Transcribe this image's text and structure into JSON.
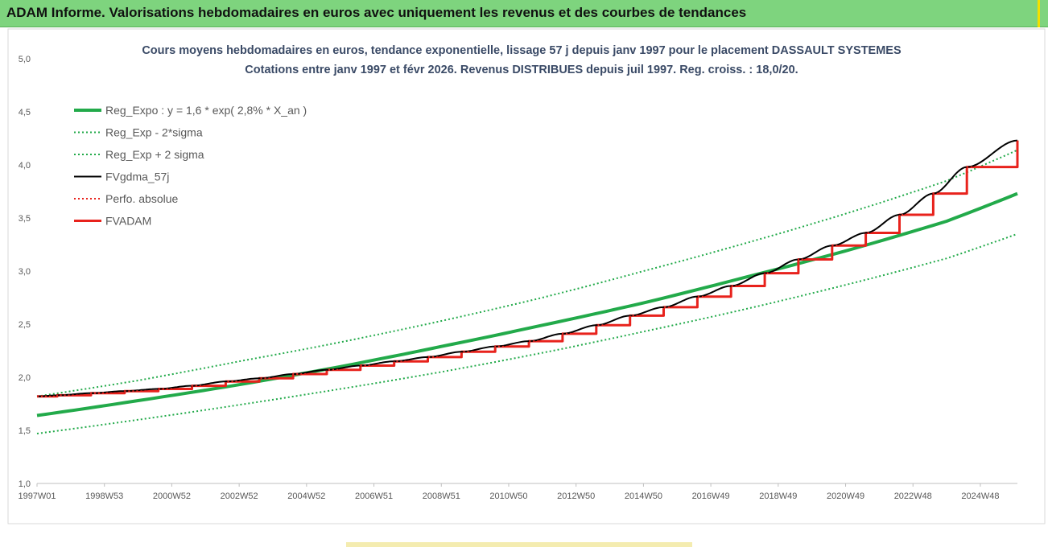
{
  "header": {
    "title": "ADAM Informe. Valorisations hebdomadaires en euros avec uniquement les revenus et des courbes de tendances"
  },
  "chart_data": {
    "type": "line",
    "title": "Cours moyens hebdomadaires en euros, tendance exponentielle, lissage 57 j depuis janv 1997 pour le placement DASSAULT SYSTEMES",
    "subtitle": "Cotations entre janv 1997 et févr 2026. Revenus DISTRIBUES depuis juil 1997. Reg. croiss. : 18,0/20.",
    "xlabel": "",
    "ylabel": "",
    "ylim": [
      1.0,
      5.0
    ],
    "xlim": [
      1997.0,
      2026.1
    ],
    "yticks": [
      "1,0",
      "1,5",
      "2,0",
      "2,5",
      "3,0",
      "3,5",
      "4,0",
      "4,5",
      "5,0"
    ],
    "xtick_labels": [
      "1997W01",
      "1998W53",
      "2000W52",
      "2002W52",
      "2004W52",
      "2006W51",
      "2008W51",
      "2010W50",
      "2012W50",
      "2014W50",
      "2016W49",
      "2018W49",
      "2020W49",
      "2022W48",
      "2024W48"
    ],
    "xtick_years": [
      1997.0,
      1999.0,
      2001.0,
      2003.0,
      2005.0,
      2007.0,
      2009.0,
      2011.0,
      2013.0,
      2015.0,
      2017.0,
      2019.0,
      2021.0,
      2023.0,
      2025.0
    ],
    "grid": false,
    "legend_position": "top-left",
    "series": [
      {
        "name": "Reg_Expo : y = 1,6 * exp( 2,8% *  X_an )",
        "color": "#22aa4a",
        "style": "solid",
        "x": [
          1997.0,
          2000.0,
          2003.0,
          2006.0,
          2009.0,
          2012.0,
          2015.0,
          2018.0,
          2021.0,
          2024.0,
          2026.1
        ],
        "y": [
          1.64,
          1.78,
          1.93,
          2.1,
          2.29,
          2.49,
          2.7,
          2.94,
          3.19,
          3.47,
          3.73
        ]
      },
      {
        "name": "Reg_Exp - 2*sigma",
        "color": "#22aa4a",
        "style": "dotted",
        "x": [
          1997.0,
          2000.0,
          2003.0,
          2006.0,
          2009.0,
          2012.0,
          2015.0,
          2018.0,
          2021.0,
          2024.0,
          2026.1
        ],
        "y": [
          1.47,
          1.6,
          1.74,
          1.89,
          2.05,
          2.23,
          2.43,
          2.64,
          2.87,
          3.12,
          3.35
        ]
      },
      {
        "name": "Reg_Exp + 2 sigma",
        "color": "#22aa4a",
        "style": "dotted",
        "x": [
          1997.0,
          2000.0,
          2003.0,
          2006.0,
          2009.0,
          2012.0,
          2015.0,
          2018.0,
          2021.0,
          2024.0,
          2026.1
        ],
        "y": [
          1.82,
          1.97,
          2.15,
          2.33,
          2.53,
          2.75,
          3.0,
          3.26,
          3.54,
          3.85,
          4.14
        ]
      },
      {
        "name": "FVgdma_57j",
        "color": "#000000",
        "style": "solid-smoothed",
        "x": [
          1997.0,
          1997.6,
          1998.6,
          1999.6,
          2000.6,
          2001.6,
          2002.6,
          2003.6,
          2004.6,
          2005.6,
          2006.6,
          2007.6,
          2008.6,
          2009.6,
          2010.6,
          2011.6,
          2012.6,
          2013.6,
          2014.6,
          2015.6,
          2016.6,
          2017.6,
          2018.6,
          2019.6,
          2020.6,
          2021.6,
          2022.6,
          2023.6,
          2024.6,
          2026.1
        ],
        "y": [
          1.82,
          1.83,
          1.85,
          1.87,
          1.89,
          1.92,
          1.96,
          1.99,
          2.03,
          2.07,
          2.11,
          2.15,
          2.19,
          2.24,
          2.29,
          2.34,
          2.41,
          2.49,
          2.58,
          2.66,
          2.76,
          2.86,
          2.98,
          3.11,
          3.24,
          3.36,
          3.53,
          3.73,
          3.98,
          4.23
        ]
      },
      {
        "name": "Perfo. absolue",
        "color": "#e8221c",
        "style": "dotted",
        "x": [
          1997.0,
          1997.6,
          1998.6,
          1999.6,
          2000.6,
          2001.6,
          2002.6,
          2003.6,
          2004.6,
          2005.6,
          2006.6,
          2007.6,
          2008.6,
          2009.6,
          2010.6,
          2011.6,
          2012.6,
          2013.6,
          2014.6,
          2015.6,
          2016.6,
          2017.6,
          2018.6,
          2019.6,
          2020.6,
          2021.6,
          2022.6,
          2023.6,
          2024.6,
          2026.1
        ],
        "y": [
          1.82,
          1.83,
          1.85,
          1.87,
          1.89,
          1.92,
          1.96,
          1.99,
          2.03,
          2.07,
          2.11,
          2.15,
          2.19,
          2.24,
          2.29,
          2.34,
          2.41,
          2.49,
          2.58,
          2.66,
          2.76,
          2.86,
          2.98,
          3.11,
          3.24,
          3.36,
          3.53,
          3.73,
          3.98,
          4.23
        ]
      },
      {
        "name": "FVADAM",
        "color": "#e8221c",
        "style": "solid-step",
        "x": [
          1997.0,
          1997.6,
          1998.6,
          1999.6,
          2000.6,
          2001.6,
          2002.6,
          2003.6,
          2004.6,
          2005.6,
          2006.6,
          2007.6,
          2008.6,
          2009.6,
          2010.6,
          2011.6,
          2012.6,
          2013.6,
          2014.6,
          2015.6,
          2016.6,
          2017.6,
          2018.6,
          2019.6,
          2020.6,
          2021.6,
          2022.6,
          2023.6,
          2024.6,
          2026.1
        ],
        "y": [
          1.82,
          1.83,
          1.85,
          1.87,
          1.89,
          1.92,
          1.96,
          1.99,
          2.03,
          2.07,
          2.11,
          2.15,
          2.19,
          2.24,
          2.29,
          2.34,
          2.41,
          2.49,
          2.58,
          2.66,
          2.76,
          2.86,
          2.98,
          3.11,
          3.24,
          3.36,
          3.53,
          3.73,
          3.98,
          4.23
        ]
      }
    ]
  }
}
